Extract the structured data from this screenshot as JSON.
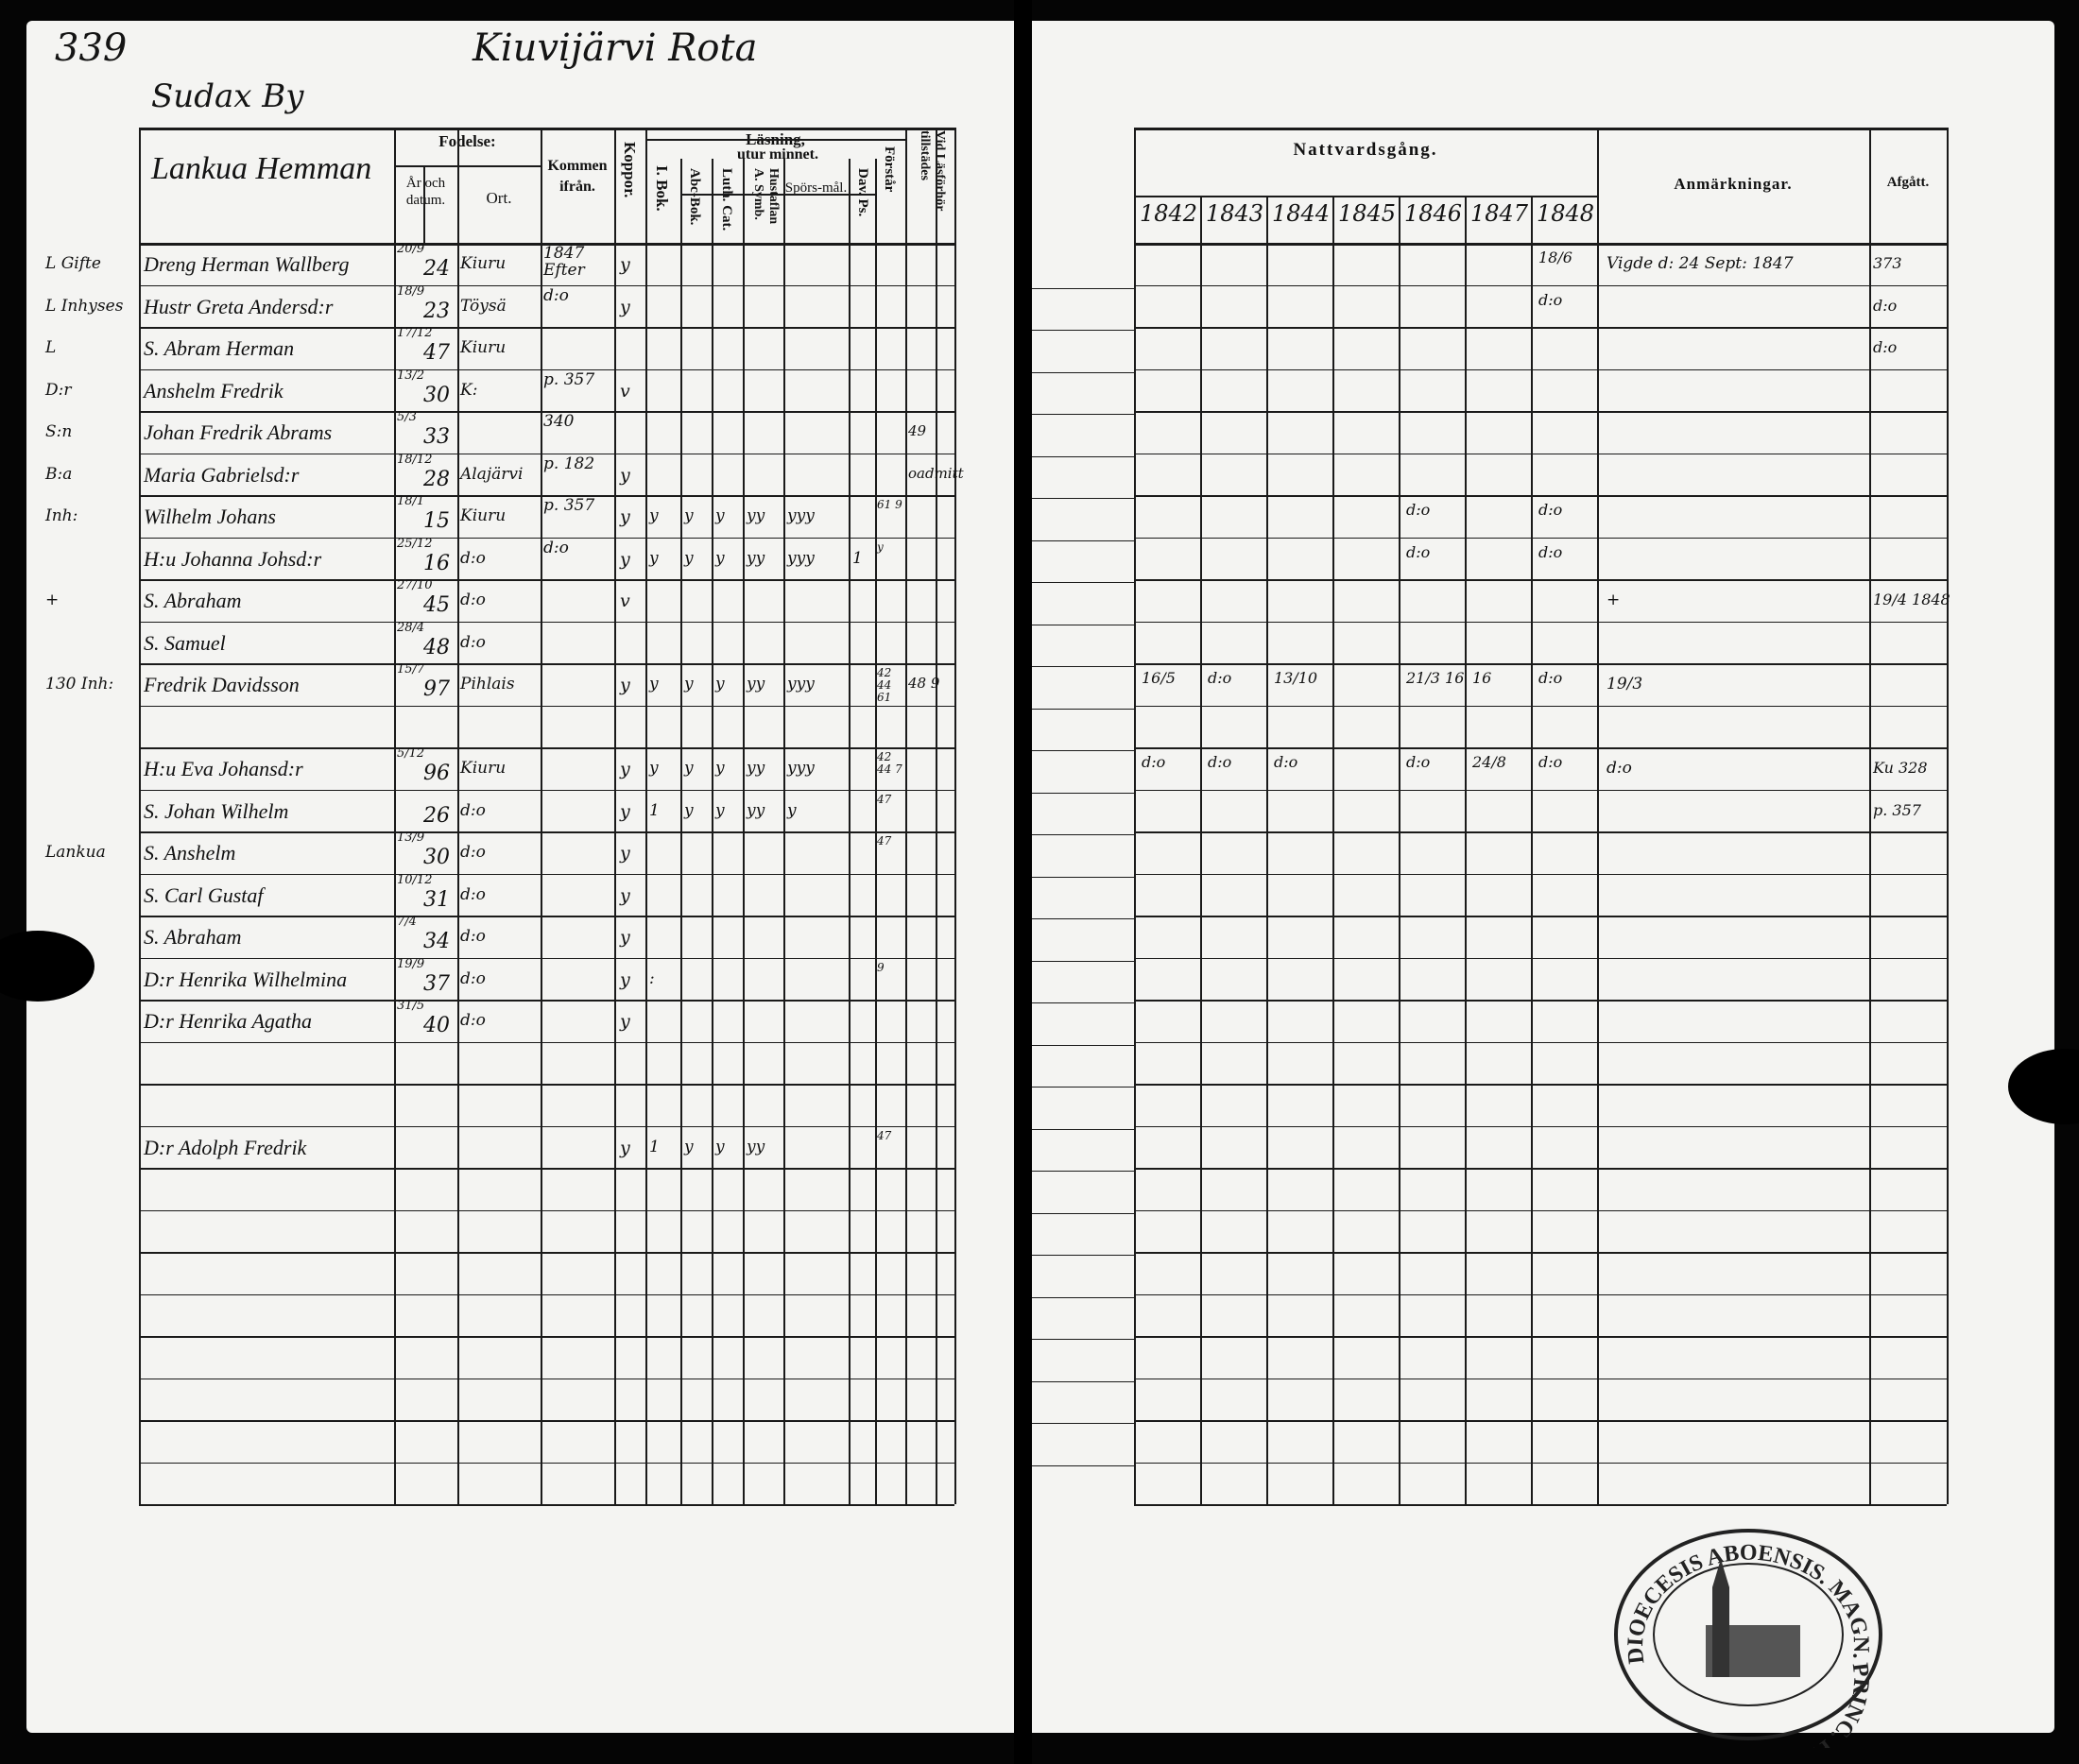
{
  "page_number": "339",
  "title": "Kiuvijärvi Rota",
  "village": "Sudax By",
  "homestead": "Lankua Hemman",
  "left_headers": {
    "fodelse": "Fodelse:",
    "ar_och_datum": "År och datum.",
    "ort": "Ort.",
    "kommen_ifran": "Kommen ifrån.",
    "koppor": "Koppor.",
    "lasning": "Läsning,",
    "i_bok": "I. Bok.",
    "utur_minnet": "utur minnet.",
    "abc_bok": "Abc-Bok.",
    "luth_cat": "Luth. Cat.",
    "hustaflan": "Hustaflan A. Symb.",
    "sporsmal": "Spörs-mål.",
    "dav_ps": "Dav. Ps.",
    "forstar": "Förstår",
    "vid_lasforhor": "Vid Läsförhör tillstädes"
  },
  "right_headers": {
    "nattvardsgang": "Nattvardsgång.",
    "years": [
      "1842",
      "1843",
      "1844",
      "1845",
      "1846",
      "1847",
      "1848"
    ],
    "anmarkningar": "Anmärkningar.",
    "afgatt": "Afgått."
  },
  "rows": [
    {
      "margin": "L Gifte",
      "name": "Dreng Herman Wallberg",
      "date": "20/9",
      "year": "24",
      "ort": "Kiuru",
      "kommen": "1847 Efter",
      "kop": "y",
      "reading": [
        "",
        "",
        "",
        "",
        "",
        "",
        ""
      ],
      "forstar": "",
      "vid": "",
      "nattvard": [
        "",
        "",
        "",
        "",
        "",
        "",
        "18/6"
      ],
      "anm": "Vigde d: 24 Sept: 1847",
      "afgatt": "373"
    },
    {
      "margin": "L Inhyses",
      "name": "Hustr Greta Andersd:r",
      "date": "18/9",
      "year": "23",
      "ort": "Töysä",
      "kommen": "d:o",
      "kop": "y",
      "reading": [
        "",
        "",
        "",
        "",
        "",
        "",
        ""
      ],
      "forstar": "",
      "vid": "",
      "nattvard": [
        "",
        "",
        "",
        "",
        "",
        "",
        "d:o"
      ],
      "anm": "",
      "afgatt": "d:o"
    },
    {
      "margin": "L",
      "name": "S. Abram Herman",
      "date": "17/12",
      "year": "47",
      "ort": "Kiuru",
      "kommen": "",
      "kop": "",
      "reading": [
        "",
        "",
        "",
        "",
        "",
        "",
        ""
      ],
      "forstar": "",
      "vid": "",
      "nattvard": [
        "",
        "",
        "",
        "",
        "",
        "",
        ""
      ],
      "anm": "",
      "afgatt": "d:o"
    },
    {
      "margin": "D:r",
      "name": "Anshelm Fredrik",
      "date": "13/2",
      "year": "30",
      "ort": "K:",
      "kommen": "p. 357",
      "kop": "v",
      "reading": [
        "",
        "",
        "",
        "",
        "",
        "",
        ""
      ],
      "forstar": "",
      "vid": "",
      "nattvard": [
        "",
        "",
        "",
        "",
        "",
        "",
        ""
      ],
      "anm": "",
      "afgatt": ""
    },
    {
      "margin": "S:n",
      "name": "Johan Fredrik Abrams",
      "date": "5/3",
      "year": "33",
      "ort": "",
      "kommen": "340",
      "kop": "",
      "reading": [
        "",
        "",
        "",
        "",
        "",
        "",
        ""
      ],
      "forstar": "",
      "vid": "49",
      "nattvard": [
        "",
        "",
        "",
        "",
        "",
        "",
        ""
      ],
      "anm": "",
      "afgatt": ""
    },
    {
      "margin": "B:a",
      "name": "Maria Gabrielsd:r",
      "date": "18/12",
      "year": "28",
      "ort": "Alajärvi",
      "kommen": "p. 182",
      "kop": "y",
      "reading": [
        "",
        "",
        "",
        "",
        "",
        "",
        ""
      ],
      "forstar": "",
      "vid": "oadmitt",
      "nattvard": [
        "",
        "",
        "",
        "",
        "",
        "",
        ""
      ],
      "anm": "",
      "afgatt": ""
    },
    {
      "margin": "Inh:",
      "name": "Wilhelm Johans",
      "date": "18/1",
      "year": "15",
      "ort": "Kiuru",
      "kommen": "p. 357",
      "kop": "y",
      "reading": [
        "y",
        "y",
        "y",
        "yy",
        "yyy",
        "",
        ""
      ],
      "forstar": "61 9",
      "vid": "",
      "nattvard": [
        "",
        "",
        "",
        "",
        "d:o",
        "",
        "d:o"
      ],
      "anm": "",
      "afgatt": ""
    },
    {
      "margin": "",
      "name": "H:u Johanna Johsd:r",
      "date": "25/12",
      "year": "16",
      "ort": "d:o",
      "kommen": "d:o",
      "kop": "y",
      "reading": [
        "y",
        "y",
        "y",
        "yy",
        "yyy",
        "1",
        ""
      ],
      "forstar": "y",
      "vid": "",
      "nattvard": [
        "",
        "",
        "",
        "",
        "d:o",
        "",
        "d:o"
      ],
      "anm": "",
      "afgatt": ""
    },
    {
      "margin": "+",
      "name": "S. Abraham",
      "date": "27/10",
      "year": "45",
      "ort": "d:o",
      "kommen": "",
      "kop": "v",
      "reading": [
        "",
        "",
        "",
        "",
        "",
        "",
        ""
      ],
      "forstar": "",
      "vid": "",
      "nattvard": [
        "",
        "",
        "",
        "",
        "",
        "",
        ""
      ],
      "anm": "+",
      "afgatt": "19/4 1848"
    },
    {
      "margin": "",
      "name": "S. Samuel",
      "date": "28/4",
      "year": "48",
      "ort": "d:o",
      "kommen": "",
      "kop": "",
      "reading": [
        "",
        "",
        "",
        "",
        "",
        "",
        ""
      ],
      "forstar": "",
      "vid": "",
      "nattvard": [
        "",
        "",
        "",
        "",
        "",
        "",
        ""
      ],
      "anm": "",
      "afgatt": ""
    },
    {
      "margin": "130 Inh:",
      "name": "Fredrik Davidsson",
      "date": "15/7",
      "year": "97",
      "ort": "Pihlais",
      "kommen": "",
      "kop": "y",
      "reading": [
        "y",
        "y",
        "y",
        "yy",
        "yyy",
        "",
        ""
      ],
      "forstar": "42 44 61",
      "vid": "48 9",
      "nattvard": [
        "16/5",
        "d:o",
        "13/10",
        "",
        "21/3 16",
        "16",
        "d:o"
      ],
      "anm": "19/3",
      "afgatt": ""
    },
    {},
    {
      "margin": "",
      "name": "H:u Eva Johansd:r",
      "date": "5/12",
      "year": "96",
      "ort": "Kiuru",
      "kommen": "",
      "kop": "y",
      "reading": [
        "y",
        "y",
        "y",
        "yy",
        "yyy",
        "",
        ""
      ],
      "forstar": "42 44 7",
      "vid": "",
      "nattvard": [
        "d:o",
        "d:o",
        "d:o",
        "",
        "d:o",
        "24/8",
        "d:o"
      ],
      "anm": "d:o",
      "afgatt": "Ku 328"
    },
    {
      "margin": "",
      "name": "S. Johan Wilhelm",
      "date": "",
      "year": "26",
      "ort": "d:o",
      "kommen": "",
      "kop": "y",
      "reading": [
        "1",
        "y",
        "y",
        "yy",
        "y",
        "",
        ""
      ],
      "forstar": "47",
      "vid": "",
      "nattvard": [
        "",
        "",
        "",
        "",
        "",
        "",
        ""
      ],
      "anm": "",
      "afgatt": "p. 357"
    },
    {
      "margin": "Lankua",
      "name": "S. Anshelm",
      "date": "13/9",
      "year": "30",
      "ort": "d:o",
      "kommen": "",
      "kop": "y",
      "reading": [
        "",
        "",
        "",
        "",
        "",
        "",
        ""
      ],
      "forstar": "47",
      "vid": "",
      "nattvard": [
        "",
        "",
        "",
        "",
        "",
        "",
        ""
      ],
      "anm": "",
      "afgatt": ""
    },
    {
      "margin": "",
      "name": "S. Carl Gustaf",
      "date": "10/12",
      "year": "31",
      "ort": "d:o",
      "kommen": "",
      "kop": "y",
      "reading": [
        "",
        "",
        "",
        "",
        "",
        "",
        ""
      ],
      "forstar": "",
      "vid": "",
      "nattvard": [
        "",
        "",
        "",
        "",
        "",
        "",
        ""
      ],
      "anm": "",
      "afgatt": ""
    },
    {
      "margin": "",
      "name": "S. Abraham",
      "date": "7/4",
      "year": "34",
      "ort": "d:o",
      "kommen": "",
      "kop": "y",
      "reading": [
        "",
        "",
        "",
        "",
        "",
        "",
        ""
      ],
      "forstar": "",
      "vid": "",
      "nattvard": [
        "",
        "",
        "",
        "",
        "",
        "",
        ""
      ],
      "anm": "",
      "afgatt": ""
    },
    {
      "margin": "",
      "name": "D:r Henrika Wilhelmina",
      "date": "19/9",
      "year": "37",
      "ort": "d:o",
      "kommen": "",
      "kop": "y",
      "reading": [
        ":",
        "",
        "",
        "",
        "",
        "",
        ""
      ],
      "forstar": "9",
      "vid": "",
      "nattvard": [
        "",
        "",
        "",
        "",
        "",
        "",
        ""
      ],
      "anm": "",
      "afgatt": ""
    },
    {
      "margin": "",
      "name": "D:r Henrika Agatha",
      "date": "31/5",
      "year": "40",
      "ort": "d:o",
      "kommen": "",
      "kop": "y",
      "reading": [
        "",
        "",
        "",
        "",
        "",
        "",
        ""
      ],
      "forstar": "",
      "vid": "",
      "nattvard": [
        "",
        "",
        "",
        "",
        "",
        "",
        ""
      ],
      "anm": "",
      "afgatt": ""
    },
    {},
    {},
    {
      "margin": "",
      "name": "D:r Adolph Fredrik",
      "date": "",
      "year": "",
      "ort": "",
      "kommen": "",
      "kop": "y",
      "reading": [
        "1",
        "y",
        "y",
        "yy",
        "",
        "",
        ""
      ],
      "forstar": "47",
      "vid": "",
      "nattvard": [
        "",
        "",
        "",
        "",
        "",
        "",
        ""
      ],
      "anm": "",
      "afgatt": ""
    }
  ],
  "stamp": {
    "text": "DIOECESIS ABOENSIS. MAGN. PRINC. FINL."
  }
}
